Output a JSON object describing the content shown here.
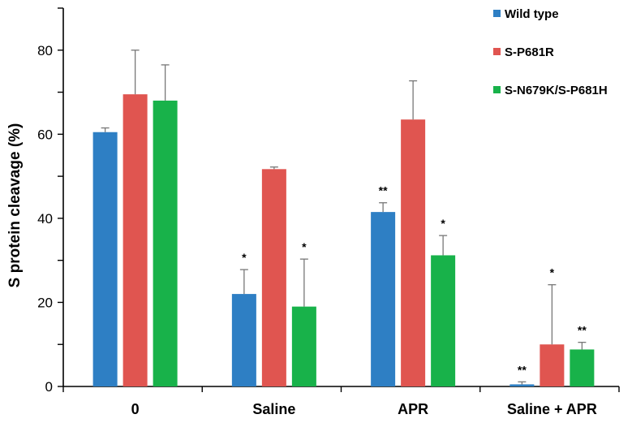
{
  "chart_data": {
    "type": "bar",
    "title": "",
    "xlabel": "",
    "ylabel": "S protein cleavage (%)",
    "ylim": [
      0,
      90
    ],
    "yticks": [
      0,
      20,
      40,
      60,
      80
    ],
    "categories": [
      "0",
      "Saline",
      "APR",
      "Saline + APR"
    ],
    "legend_position": "top-right",
    "series": [
      {
        "name": "Wild type",
        "color": "#2e7fc4",
        "values": [
          60.5,
          22,
          41.5,
          0.5
        ],
        "errors": [
          1,
          5.8,
          2.2,
          0.6
        ],
        "significance": [
          "",
          "*",
          "**",
          "**"
        ]
      },
      {
        "name": "S-P681R",
        "color": "#e05550",
        "values": [
          69.5,
          51.7,
          63.5,
          10
        ],
        "errors": [
          10.5,
          0.5,
          9.2,
          14.2
        ],
        "significance": [
          "",
          "",
          "",
          "*"
        ]
      },
      {
        "name": "S-N679K/S-P681H",
        "color": "#18b24a",
        "values": [
          68,
          19,
          31.2,
          8.8
        ],
        "errors": [
          8.5,
          11.3,
          4.7,
          1.7
        ],
        "significance": [
          "",
          "*",
          "*",
          "**"
        ]
      }
    ]
  }
}
